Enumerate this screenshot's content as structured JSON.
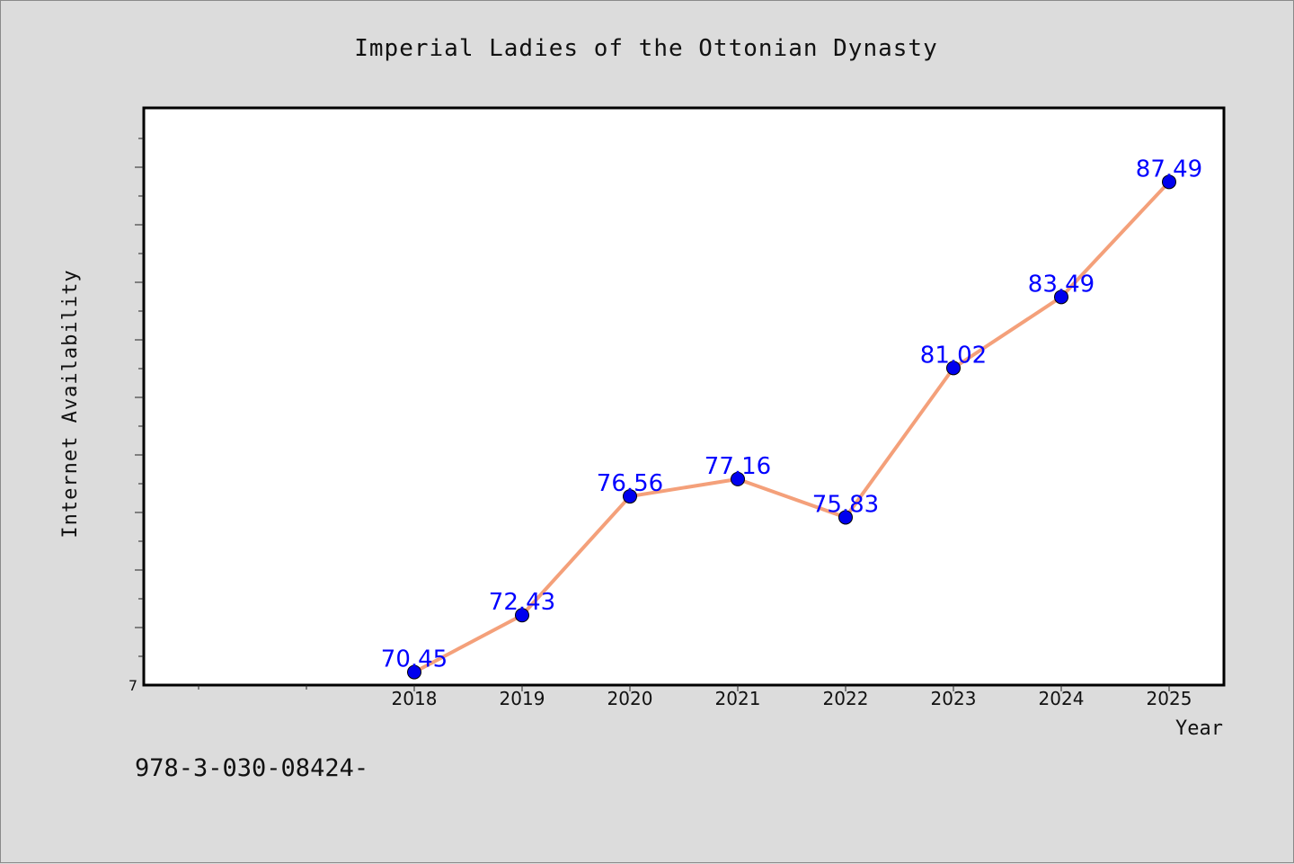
{
  "chart_data": {
    "type": "line",
    "title": "Imperial Ladies of the Ottonian Dynasty",
    "xlabel": "Year",
    "ylabel": "Internet Availability",
    "categories": [
      "2018",
      "2019",
      "2020",
      "2021",
      "2022",
      "2023",
      "2024",
      "2025"
    ],
    "values": [
      70.45,
      72.43,
      76.56,
      77.16,
      75.83,
      81.02,
      83.49,
      87.49
    ],
    "data_labels": [
      "70.45",
      "72.43",
      "76.56",
      "77.16",
      "75.83",
      "81.02",
      "83.49",
      "87.49"
    ],
    "y_tick_labels": [
      "7"
    ],
    "ylim": [
      70,
      90
    ],
    "grid": false,
    "line_color": "#f4a07a",
    "marker_color": "#0000ee",
    "label_color": "#0000ff"
  },
  "footer_text": "978-3-030-08424-"
}
